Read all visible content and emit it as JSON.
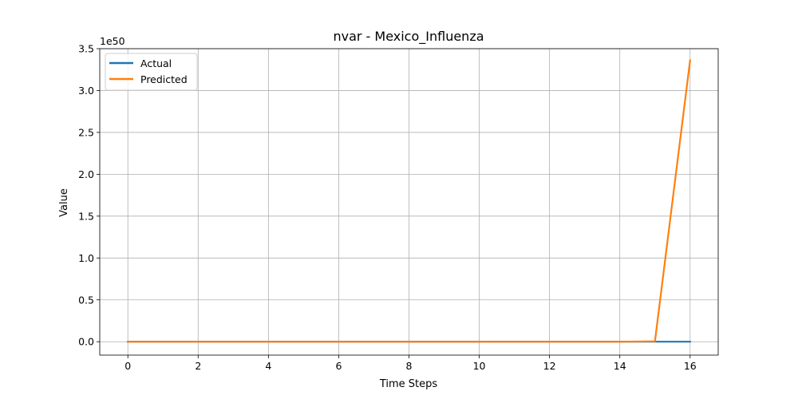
{
  "chart_data": {
    "type": "line",
    "title": "nvar - Mexico_Influenza",
    "xlabel": "Time Steps",
    "ylabel": "Value",
    "y_offset_label": "1e50",
    "x": [
      0,
      1,
      2,
      3,
      4,
      5,
      6,
      7,
      8,
      9,
      10,
      11,
      12,
      13,
      14,
      15,
      16
    ],
    "xlim": [
      -0.8,
      16.8
    ],
    "ylim": [
      -0.16,
      3.5
    ],
    "x_ticks": [
      0,
      2,
      4,
      6,
      8,
      10,
      12,
      14,
      16
    ],
    "x_tick_labels": [
      "0",
      "2",
      "4",
      "6",
      "8",
      "10",
      "12",
      "14",
      "16"
    ],
    "y_ticks": [
      0.0,
      0.5,
      1.0,
      1.5,
      2.0,
      2.5,
      3.0,
      3.5
    ],
    "y_tick_labels": [
      "0.0",
      "0.5",
      "1.0",
      "1.5",
      "2.0",
      "2.5",
      "3.0",
      "3.5"
    ],
    "grid": true,
    "legend_position": "top-left",
    "series": [
      {
        "name": "Actual",
        "color": "#1f77b4",
        "values": [
          0,
          0,
          0,
          0,
          0,
          0,
          0,
          0,
          0,
          0,
          0,
          0,
          0,
          0,
          0,
          0,
          0
        ]
      },
      {
        "name": "Predicted",
        "color": "#ff7f0e",
        "values": [
          0,
          0,
          0,
          0,
          0,
          0,
          0,
          0,
          0,
          0,
          0,
          0,
          0,
          0,
          0,
          0.005,
          3.36
        ]
      }
    ]
  }
}
